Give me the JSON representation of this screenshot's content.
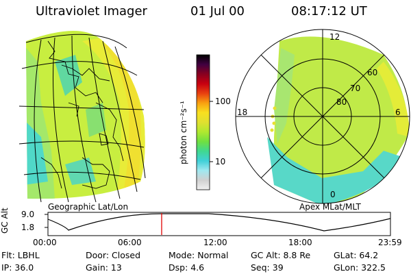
{
  "header": {
    "instrument": "Ultraviolet Imager",
    "date": "01 Jul 00",
    "time": "08:17:12 UT"
  },
  "left_panel": {
    "caption": "Geographic Lat/Lon"
  },
  "right_panel": {
    "caption": "Apex MLat/MLT",
    "mlt_labels": {
      "top": "12",
      "bottom": "0",
      "left": "18",
      "right": "6"
    },
    "lat_labels": [
      "60",
      "70",
      "80"
    ]
  },
  "colorbar": {
    "unit": "photon cm⁻²s⁻¹",
    "ticks": [
      "100",
      "10"
    ],
    "colors": [
      "#f0f0f0",
      "#d0d0d0",
      "#a0e8f0",
      "#40d0d8",
      "#40d890",
      "#70e040",
      "#b0e830",
      "#e0e030",
      "#f8e020",
      "#f8a010",
      "#e84010",
      "#c80010",
      "#880020",
      "#400040",
      "#000000"
    ]
  },
  "altitude_plot": {
    "ylabel": "GC Alt",
    "yticks": [
      "9.0",
      "1.8"
    ],
    "xticks": [
      "00:00",
      "06:00",
      "12:00",
      "18:00",
      "23:59"
    ],
    "marker_color": "#e00000"
  },
  "info": {
    "row1": {
      "filter": "Flt: LBHL",
      "door": "Door: Closed",
      "mode": "Mode: Normal",
      "gc_alt": "GC Alt: 8.8 Re",
      "glat": "GLat:  64.2"
    },
    "row2": {
      "ip": "IP: 36.0",
      "gain": "Gain: 13",
      "dsp": "Dsp:    4.6",
      "seq": "Seq: 39",
      "glon": "GLon: 322.5"
    }
  }
}
